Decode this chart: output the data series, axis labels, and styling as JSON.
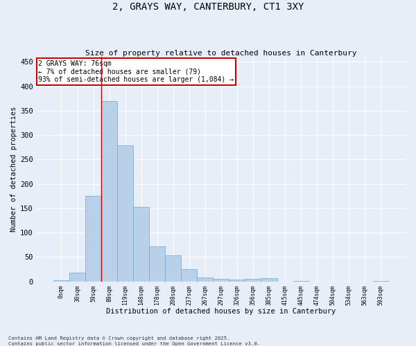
{
  "title": "2, GRAYS WAY, CANTERBURY, CT1 3XY",
  "subtitle": "Size of property relative to detached houses in Canterbury",
  "xlabel": "Distribution of detached houses by size in Canterbury",
  "ylabel": "Number of detached properties",
  "bar_color": "#b8d0e8",
  "bar_edge_color": "#6aaad4",
  "background_color": "#e8eef8",
  "grid_color": "#ffffff",
  "categories": [
    "0sqm",
    "30sqm",
    "59sqm",
    "89sqm",
    "119sqm",
    "148sqm",
    "178sqm",
    "208sqm",
    "237sqm",
    "267sqm",
    "297sqm",
    "326sqm",
    "356sqm",
    "385sqm",
    "415sqm",
    "445sqm",
    "474sqm",
    "504sqm",
    "534sqm",
    "563sqm",
    "593sqm"
  ],
  "values": [
    2,
    18,
    176,
    370,
    279,
    153,
    72,
    54,
    25,
    8,
    5,
    4,
    5,
    7,
    0,
    1,
    0,
    0,
    0,
    0,
    1
  ],
  "annotation_line1": "2 GRAYS WAY: 76sqm",
  "annotation_line2": "← 7% of detached houses are smaller (79)",
  "annotation_line3": "93% of semi-detached houses are larger (1,084) →",
  "annotation_box_color": "#ffffff",
  "annotation_box_edge_color": "#cc0000",
  "vline_color": "#cc0000",
  "vline_x": 2.5,
  "footer_line1": "Contains HM Land Registry data © Crown copyright and database right 2025.",
  "footer_line2": "Contains public sector information licensed under the Open Government Licence v3.0.",
  "ylim": [
    0,
    460
  ],
  "yticks": [
    0,
    50,
    100,
    150,
    200,
    250,
    300,
    350,
    400,
    450
  ]
}
